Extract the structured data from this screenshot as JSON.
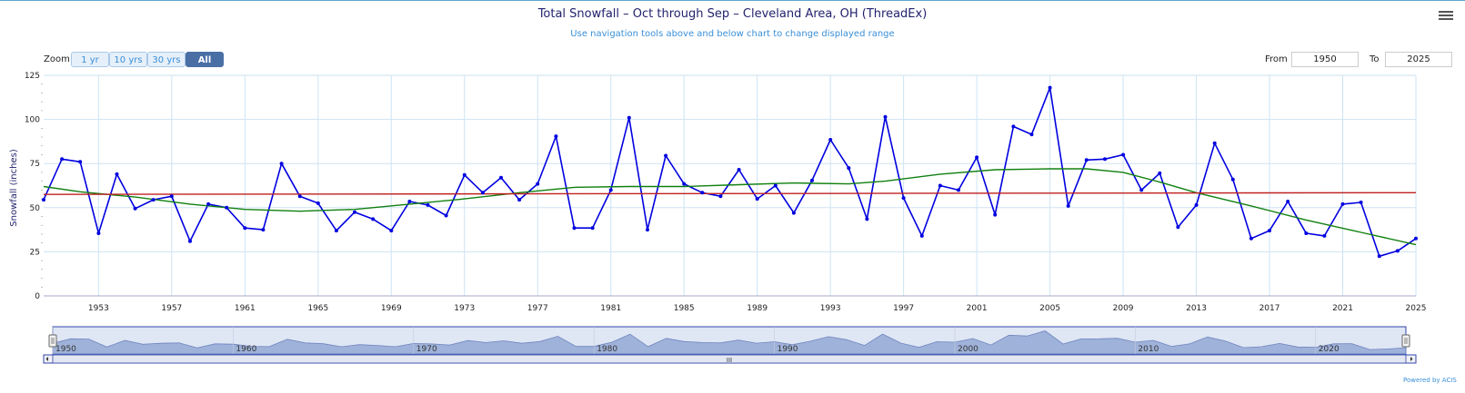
{
  "header": {
    "title": "Total Snowfall – Oct through Sep – Cleveland Area, OH (ThreadEx)",
    "subtitle": "Use navigation tools above and below chart to change displayed range"
  },
  "zoom": {
    "label": "Zoom",
    "buttons": [
      "1 yr",
      "10 yrs",
      "30 yrs",
      "All"
    ],
    "active": "All"
  },
  "range": {
    "from_label": "From",
    "from_value": "1950",
    "to_label": "To",
    "to_value": "2025"
  },
  "navigator": {
    "labels": [
      "1950",
      "1960",
      "1970",
      "1980",
      "1990",
      "2000",
      "2010",
      "2020"
    ],
    "scrollbar_grip": "III"
  },
  "credits": "Powered by ACIS",
  "colors": {
    "series": "#0000e0",
    "trend_smooth": "#108010",
    "trend_linear": "#c02020",
    "grid": "#cde3f3",
    "navigator_fill": "#8aa0d0"
  },
  "chart_data": {
    "type": "line",
    "ylabel": "Snowfall (inches)",
    "xlabel": "",
    "ylim": [
      0,
      125
    ],
    "xlim": [
      1950,
      2025
    ],
    "y_ticks": [
      0,
      25,
      50,
      75,
      100,
      125
    ],
    "x_ticks": [
      1953,
      1957,
      1961,
      1965,
      1969,
      1973,
      1977,
      1981,
      1985,
      1989,
      1993,
      1997,
      2001,
      2005,
      2009,
      2013,
      2017,
      2021,
      2025
    ],
    "x_tick_labels": [
      "1953",
      "1957",
      "1961",
      "1965",
      "1969",
      "1973",
      "1977",
      "1981",
      "1985",
      "1989",
      "1993",
      "1997",
      "2001",
      "2005",
      "2009",
      "2013",
      "2017",
      "2021",
      "2025"
    ],
    "series": [
      {
        "type": "line",
        "x": [
          1950,
          1951,
          1952,
          1953,
          1954,
          1955,
          1956,
          1957,
          1958,
          1959,
          1960,
          1961,
          1962,
          1963,
          1964,
          1965,
          1966,
          1967,
          1968,
          1969,
          1970,
          1971,
          1972,
          1973,
          1974,
          1975,
          1976,
          1977,
          1978,
          1979,
          1980,
          1981,
          1982,
          1983,
          1984,
          1985,
          1986,
          1987,
          1988,
          1989,
          1990,
          1991,
          1992,
          1993,
          1994,
          1995,
          1996,
          1997,
          1998,
          1999,
          2000,
          2001,
          2002,
          2003,
          2004,
          2005,
          2006,
          2007,
          2008,
          2009,
          2010,
          2011,
          2012,
          2013,
          2014,
          2015,
          2016,
          2017,
          2018,
          2019,
          2020,
          2021,
          2022,
          2023,
          2024,
          2025
        ],
        "y": [
          54.5,
          77.5,
          76,
          35.5,
          69,
          49.5,
          54.5,
          56.5,
          31,
          52,
          50,
          38.5,
          37.5,
          75,
          56.5,
          52.5,
          37,
          47.5,
          43.5,
          37,
          53.5,
          51.5,
          45.5,
          68.5,
          58.5,
          67,
          54.5,
          63.5,
          90.5,
          38.5,
          38.5,
          60,
          101,
          37.5,
          79.5,
          63.5,
          58.5,
          56.5,
          71.5,
          55,
          62.5,
          47,
          65.5,
          88.5,
          72.5,
          43.5,
          101.5,
          55.5,
          34,
          62.5,
          60,
          78.5,
          46,
          96,
          91.5,
          118,
          51,
          77,
          77.5,
          80,
          60,
          69.5,
          39,
          51.5,
          86.5,
          66,
          32.5,
          37,
          53.5,
          35.5,
          34,
          52,
          53,
          22.5,
          25.5,
          32.5
        ]
      },
      {
        "type": "line",
        "x": [
          1950,
          1952,
          1955,
          1958,
          1961,
          1964,
          1967,
          1970,
          1973,
          1976,
          1979,
          1982,
          1985,
          1988,
          1991,
          1994,
          1996,
          1999,
          2002,
          2005,
          2007,
          2009,
          2011,
          2013,
          2016,
          2019,
          2022,
          2025
        ],
        "y": [
          62,
          59,
          56,
          52,
          49,
          48,
          49,
          52,
          55,
          58.5,
          61.5,
          62,
          62,
          63,
          64,
          63.5,
          65,
          69,
          71.5,
          72,
          72,
          70,
          64.5,
          58.5,
          51,
          43,
          36,
          29
        ]
      },
      {
        "type": "line",
        "x": [
          1950,
          2025
        ],
        "y": [
          57.5,
          58.5
        ]
      }
    ]
  }
}
